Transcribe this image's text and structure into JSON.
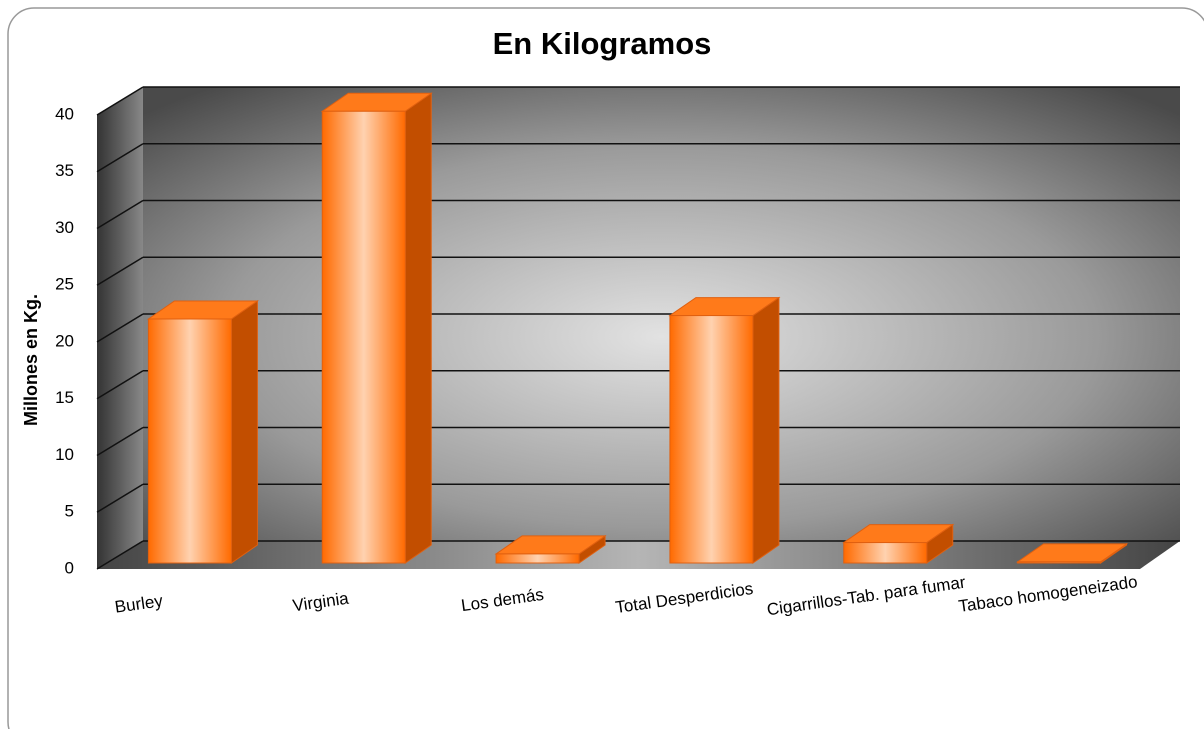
{
  "chart_data": {
    "type": "bar3d",
    "title": "En Kilogramos",
    "y_label": "Millones en Kg.",
    "categories": [
      "Burley",
      "Virginia",
      "Los demás",
      "Total Desperdicios",
      "Cigarrillos-Tab. para fumar",
      "Tabaco homogeneizado"
    ],
    "values": [
      21.5,
      39.8,
      0.8,
      21.8,
      1.8,
      0.1
    ],
    "color": "#ff7a1a",
    "ylim": [
      0,
      40
    ],
    "yticks": [
      0,
      5,
      10,
      15,
      20,
      25,
      30,
      35,
      40
    ],
    "grid": true
  }
}
